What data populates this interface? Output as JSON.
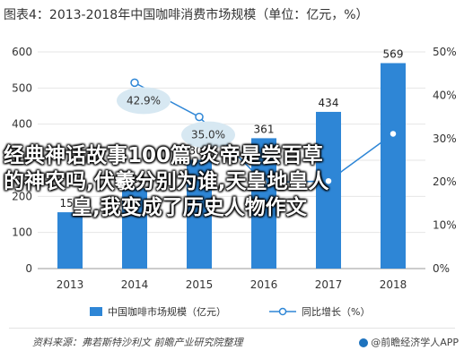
{
  "title": "图表4：2013-2018年中国咖啡消费市场规模（单位：亿元，%）",
  "chart_data": {
    "type": "bar",
    "categories": [
      "2013",
      "2014",
      "2015",
      "2016",
      "2017",
      "2018"
    ],
    "series": [
      {
        "name": "中国咖啡市场规模（亿元）",
        "type": "bar",
        "axis": "left",
        "values": [
          156,
          223,
          301,
          361,
          434,
          569
        ],
        "data_labels": [
          "156",
          "223",
          "301",
          "361",
          "434",
          "569"
        ]
      },
      {
        "name": "同比增长（%）",
        "type": "line",
        "axis": "right",
        "values": [
          null,
          42.9,
          35.0,
          19.9,
          20.2,
          31.1
        ],
        "data_labels": [
          "",
          "42.9%",
          "35.0%",
          "",
          "",
          ""
        ]
      }
    ],
    "y_left": {
      "ylim": [
        0,
        600
      ],
      "ticks": [
        "0",
        "100",
        "200",
        "300",
        "400",
        "500",
        "600"
      ]
    },
    "y_right": {
      "ylim": [
        0,
        50
      ],
      "ticks": [
        "0%",
        "10%",
        "20%",
        "30%",
        "40%",
        "50%"
      ]
    },
    "legend": {
      "placement": "bottom"
    },
    "colors": {
      "bar": "#2e86d6",
      "line": "#2e86d6",
      "label_bubble": "#d7e8f2"
    }
  },
  "overlay_text": {
    "line1": "经典神话故事100篇,炎帝是尝百草",
    "line2": "的神农吗,伏羲分别为谁,天皇地皇人",
    "line3": "皇,我变成了历史人物作文"
  },
  "footer": {
    "source": "资料来源：弗若斯特沙利文 前瞻产业研究院整理",
    "brand": "@前瞻经济学人APP"
  }
}
